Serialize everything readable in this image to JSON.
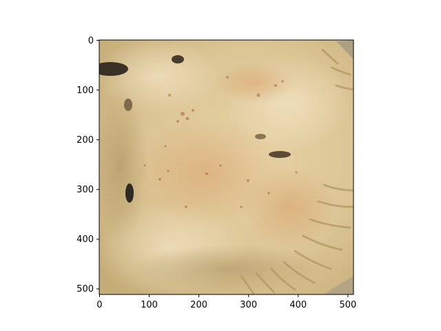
{
  "chart_data": {
    "type": "image",
    "title": "",
    "xlabel": "",
    "ylabel": "",
    "xlim": [
      0,
      512
    ],
    "ylim": [
      512,
      0
    ],
    "x_ticks": [
      "0",
      "100",
      "200",
      "300",
      "400",
      "500"
    ],
    "y_ticks": [
      "0",
      "100",
      "200",
      "300",
      "400",
      "500"
    ],
    "grid": false,
    "image_content": "baked-pie-crust"
  }
}
